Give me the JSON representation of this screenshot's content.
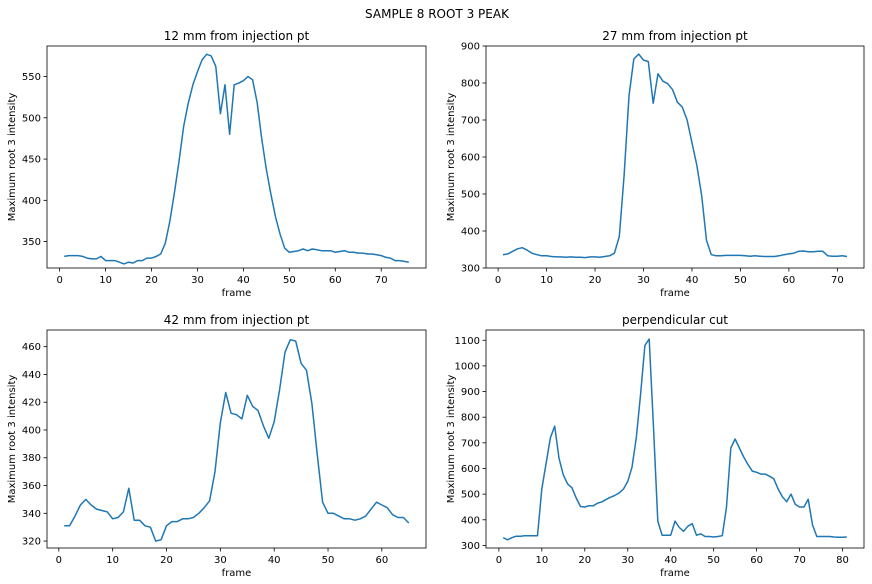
{
  "figure": {
    "suptitle": "SAMPLE 8 ROOT 3 PEAK",
    "line_color": "#1f77b4"
  },
  "chart_data": [
    {
      "type": "line",
      "title": "12 mm from injection pt",
      "xlabel": "frame",
      "ylabel": "Maximum root 3 intensity",
      "xlim": [
        -2.75,
        79.75
      ],
      "ylim": [
        318,
        587
      ],
      "xticks": [
        0,
        10,
        20,
        30,
        40,
        50,
        60,
        70
      ],
      "yticks": [
        350,
        400,
        450,
        500,
        550
      ],
      "x": [
        1,
        2,
        3,
        4,
        5,
        6,
        7,
        8,
        9,
        10,
        11,
        12,
        13,
        14,
        15,
        16,
        17,
        18,
        19,
        20,
        21,
        22,
        23,
        24,
        25,
        26,
        27,
        28,
        29,
        30,
        31,
        32,
        33,
        34,
        35,
        36,
        37,
        38,
        39,
        40,
        41,
        42,
        43,
        44,
        45,
        46,
        47,
        48,
        49,
        50,
        51,
        52,
        53,
        54,
        55,
        56,
        57,
        58,
        59,
        60,
        61,
        62,
        63,
        64,
        65,
        66,
        67,
        68,
        69,
        70,
        71,
        72,
        73,
        74,
        75,
        76
      ],
      "y": [
        332,
        333,
        333,
        333,
        332,
        330,
        329,
        329,
        332,
        327,
        327,
        327,
        325,
        323,
        325,
        324,
        327,
        327,
        330,
        330,
        332,
        335,
        348,
        375,
        410,
        448,
        490,
        518,
        540,
        556,
        570,
        577,
        575,
        562,
        505,
        540,
        480,
        540,
        542,
        545,
        550,
        546,
        518,
        474,
        437,
        407,
        380,
        359,
        342,
        337,
        338,
        339,
        341,
        339,
        341,
        340,
        339,
        339,
        339,
        337,
        338,
        339,
        337,
        337,
        336,
        336,
        335,
        335,
        334,
        333,
        331,
        330,
        327,
        327,
        326,
        325
      ]
    },
    {
      "type": "line",
      "title": "27 mm from injection pt",
      "xlabel": "frame",
      "ylabel": "Maximum root 3 intensity",
      "xlim": [
        -2.5,
        75.5
      ],
      "ylim": [
        300,
        900
      ],
      "xticks": [
        0,
        10,
        20,
        30,
        40,
        50,
        60,
        70
      ],
      "yticks": [
        300,
        400,
        500,
        600,
        700,
        800,
        900
      ],
      "x": [
        1,
        2,
        3,
        4,
        5,
        6,
        7,
        8,
        9,
        10,
        11,
        12,
        13,
        14,
        15,
        16,
        17,
        18,
        19,
        20,
        21,
        22,
        23,
        24,
        25,
        26,
        27,
        28,
        29,
        30,
        31,
        32,
        33,
        34,
        35,
        36,
        37,
        38,
        39,
        40,
        41,
        42,
        43,
        44,
        45,
        46,
        47,
        48,
        49,
        50,
        51,
        52,
        53,
        54,
        55,
        56,
        57,
        58,
        59,
        60,
        61,
        62,
        63,
        64,
        65,
        66,
        67,
        68,
        69,
        70,
        71,
        72
      ],
      "y": [
        336,
        338,
        345,
        352,
        355,
        348,
        340,
        336,
        333,
        333,
        331,
        330,
        330,
        329,
        330,
        329,
        329,
        328,
        330,
        330,
        329,
        331,
        333,
        340,
        385,
        550,
        765,
        865,
        878,
        862,
        858,
        745,
        825,
        805,
        798,
        782,
        748,
        735,
        700,
        638,
        578,
        495,
        375,
        336,
        333,
        333,
        334,
        334,
        334,
        334,
        333,
        332,
        333,
        332,
        331,
        331,
        331,
        333,
        336,
        338,
        340,
        345,
        346,
        344,
        344,
        345,
        345,
        333,
        332,
        332,
        333,
        331
      ]
    },
    {
      "type": "line",
      "title": "42 mm from injection pt",
      "xlabel": "frame",
      "ylabel": "Maximum root 3 intensity",
      "xlim": [
        -2.2,
        68.2
      ],
      "ylim": [
        315,
        472
      ],
      "xticks": [
        0,
        10,
        20,
        30,
        40,
        50,
        60
      ],
      "yticks": [
        320,
        340,
        360,
        380,
        400,
        420,
        440,
        460
      ],
      "x": [
        1,
        2,
        3,
        4,
        5,
        6,
        7,
        8,
        9,
        10,
        11,
        12,
        13,
        14,
        15,
        16,
        17,
        18,
        19,
        20,
        21,
        22,
        23,
        24,
        25,
        26,
        27,
        28,
        29,
        30,
        31,
        32,
        33,
        34,
        35,
        36,
        37,
        38,
        39,
        40,
        41,
        42,
        43,
        44,
        45,
        46,
        47,
        48,
        49,
        50,
        51,
        52,
        53,
        54,
        55,
        56,
        57,
        58,
        59,
        60,
        61,
        62,
        63,
        64,
        65
      ],
      "y": [
        331,
        331,
        338,
        346,
        350,
        346,
        343,
        342,
        341,
        336,
        337,
        341,
        358,
        335,
        335,
        331,
        330,
        320,
        321,
        331,
        334,
        334,
        336,
        336,
        337,
        340,
        344,
        349,
        370,
        405,
        427,
        412,
        411,
        408,
        425,
        417,
        414,
        403,
        394,
        406,
        429,
        456,
        465,
        464,
        448,
        443,
        419,
        382,
        348,
        340,
        340,
        338,
        336,
        336,
        335,
        336,
        338,
        343,
        348,
        346,
        344,
        339,
        337,
        337,
        333
      ]
    },
    {
      "type": "line",
      "title": "perpendicular cut",
      "xlabel": "frame",
      "ylabel": "Maximum root 3 intensity",
      "xlim": [
        -3,
        85
      ],
      "ylim": [
        290,
        1140
      ],
      "xticks": [
        0,
        10,
        20,
        30,
        40,
        50,
        60,
        70,
        80
      ],
      "yticks": [
        300,
        400,
        500,
        600,
        700,
        800,
        900,
        1000,
        1100
      ],
      "x": [
        1,
        2,
        3,
        4,
        5,
        6,
        7,
        8,
        9,
        10,
        11,
        12,
        13,
        14,
        15,
        16,
        17,
        18,
        19,
        20,
        21,
        22,
        23,
        24,
        25,
        26,
        27,
        28,
        29,
        30,
        31,
        32,
        33,
        34,
        35,
        36,
        37,
        38,
        39,
        40,
        41,
        42,
        43,
        44,
        45,
        46,
        47,
        48,
        49,
        50,
        51,
        52,
        53,
        54,
        55,
        56,
        57,
        58,
        59,
        60,
        61,
        62,
        63,
        64,
        65,
        66,
        67,
        68,
        69,
        70,
        71,
        72,
        73,
        74,
        75,
        76,
        77,
        78,
        79,
        80,
        81
      ],
      "y": [
        330,
        322,
        330,
        336,
        336,
        338,
        338,
        338,
        338,
        520,
        620,
        720,
        765,
        640,
        575,
        540,
        525,
        485,
        452,
        450,
        455,
        455,
        465,
        470,
        480,
        488,
        495,
        505,
        520,
        550,
        605,
        720,
        890,
        1080,
        1105,
        760,
        395,
        340,
        340,
        340,
        395,
        370,
        355,
        375,
        385,
        340,
        345,
        335,
        335,
        333,
        335,
        338,
        450,
        680,
        715,
        680,
        645,
        615,
        590,
        585,
        578,
        578,
        570,
        560,
        520,
        490,
        470,
        500,
        460,
        450,
        450,
        480,
        380,
        335,
        335,
        335,
        335,
        333,
        332,
        332,
        333
      ]
    }
  ]
}
